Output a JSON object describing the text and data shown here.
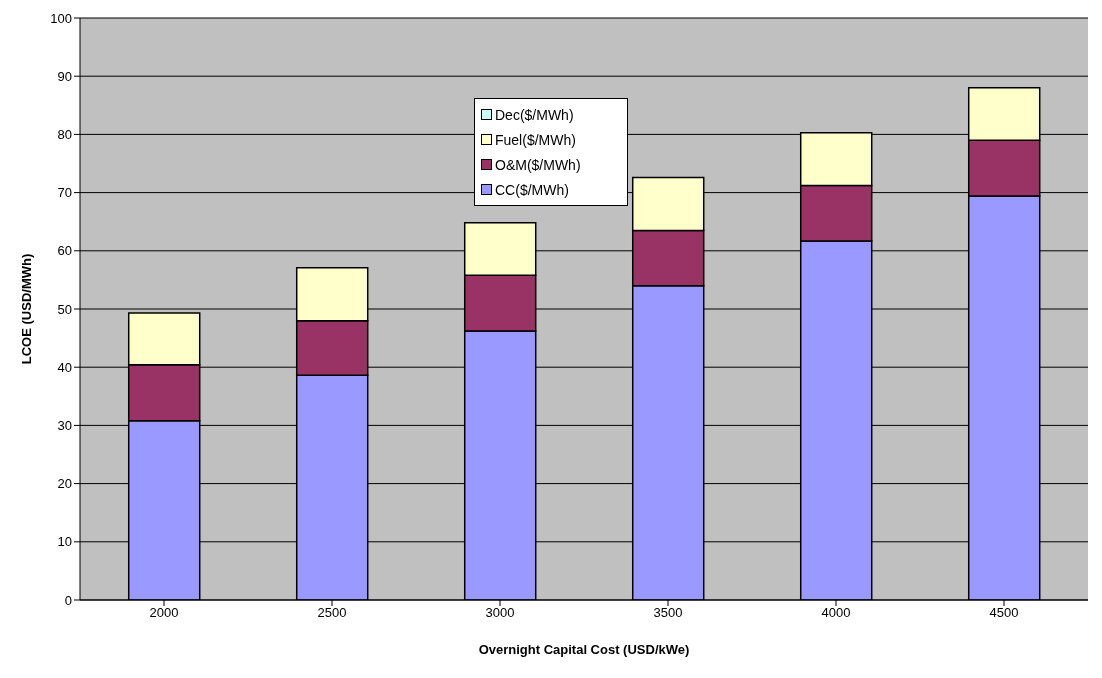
{
  "chart_data": {
    "type": "bar",
    "stacked": true,
    "xlabel": "Overnight Capital Cost (USD/kWe)",
    "ylabel": "LCOE (USD/MWh)",
    "categories": [
      "2000",
      "2500",
      "3000",
      "3500",
      "4000",
      "4500"
    ],
    "series": [
      {
        "name": "CC($/MWh)",
        "color": "#9999ff",
        "values": [
          30.8,
          38.6,
          46.2,
          54.0,
          61.7,
          69.4
        ]
      },
      {
        "name": "O&M($/MWh)",
        "color": "#993366",
        "values": [
          9.6,
          9.4,
          9.6,
          9.5,
          9.5,
          9.6
        ]
      },
      {
        "name": "Fuel($/MWh)",
        "color": "#ffffcc",
        "values": [
          8.9,
          9.1,
          9.0,
          9.1,
          9.1,
          9.0
        ]
      },
      {
        "name": "Dec($/MWh)",
        "color": "#ccffff",
        "values": [
          0,
          0,
          0,
          0,
          0,
          0
        ]
      }
    ],
    "ylim": [
      0,
      100
    ],
    "yticks": [
      0,
      10,
      20,
      30,
      40,
      50,
      60,
      70,
      80,
      90,
      100
    ],
    "grid": "y",
    "legend": "top"
  }
}
